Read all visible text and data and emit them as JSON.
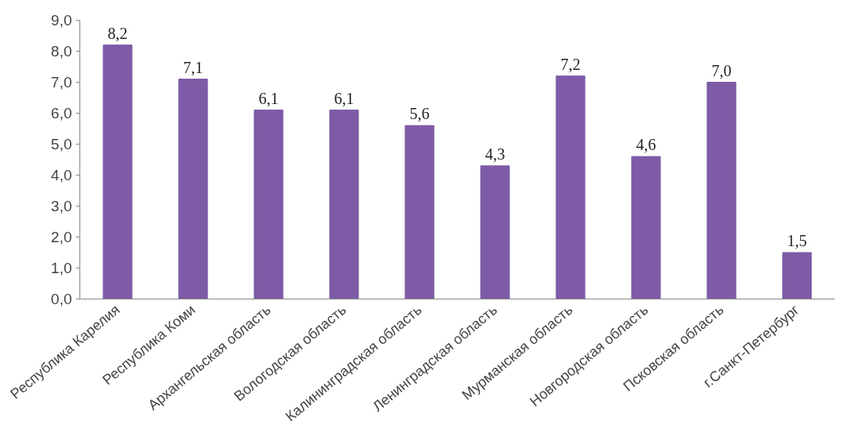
{
  "chart_data": {
    "type": "bar",
    "categories": [
      "Республика Карелия",
      "Республика Коми",
      "Архангельская область",
      "Вологодская область",
      "Калининградская область",
      "Ленинградская область",
      "Мурманская область",
      "Новгородская область",
      "Псковская область",
      "г.Санкт-Петербург"
    ],
    "values": [
      8.2,
      7.1,
      6.1,
      6.1,
      5.6,
      4.3,
      7.2,
      4.6,
      7.0,
      1.5
    ],
    "value_labels": [
      "8,2",
      "7,1",
      "6,1",
      "6,1",
      "5,6",
      "4,3",
      "7,2",
      "4,6",
      "7,0",
      "1,5"
    ],
    "color": "#7d5ba6",
    "ylim": [
      0,
      9
    ],
    "yticks": [
      {
        "value": 0,
        "label": "0,0"
      },
      {
        "value": 1,
        "label": "1,0"
      },
      {
        "value": 2,
        "label": "2,0"
      },
      {
        "value": 3,
        "label": "3,0"
      },
      {
        "value": 4,
        "label": "4,0"
      },
      {
        "value": 5,
        "label": "5,0"
      },
      {
        "value": 6,
        "label": "6,0"
      },
      {
        "value": 7,
        "label": "7,0"
      },
      {
        "value": 8,
        "label": "8,0"
      },
      {
        "value": 9,
        "label": "9,0"
      }
    ],
    "grid": false
  }
}
